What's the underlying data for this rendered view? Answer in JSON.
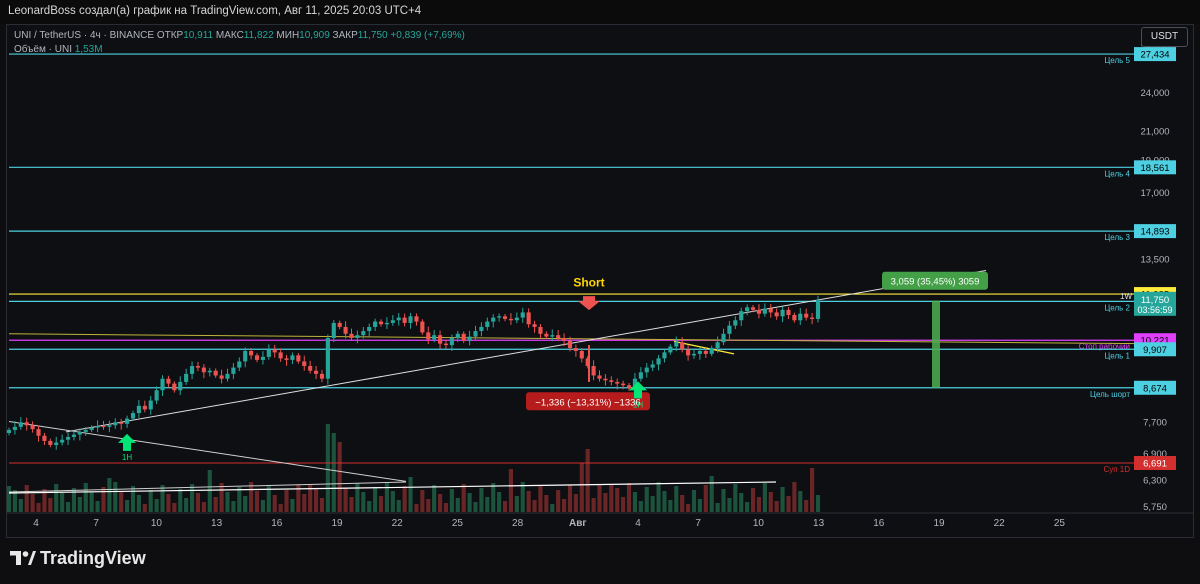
{
  "header": {
    "title": "LeonardBoss создал(а) график на TradingView.com, Авг 11, 2025 20:03 UTC+4"
  },
  "legend": {
    "symbol": "UNI / TetherUS · 4ч · BINANCE",
    "open_label": "ОТКР",
    "open": "10,911",
    "high_label": "МАКС",
    "high": "11,822",
    "low_label": "МИН",
    "low": "10,909",
    "close_label": "ЗАКР",
    "close": "11,750",
    "change": "+0,839 (+7,69%)",
    "volume_label": "Объём · UNI",
    "volume": "1,53M"
  },
  "currency_button": "USDT",
  "footer": {
    "brand": "TradingView"
  },
  "colors": {
    "up": "#26a69a",
    "down": "#ef5350",
    "level": "#4dd0e1",
    "yellow": "#ffeb3b",
    "magenta": "#e040fb",
    "red_level": "#b71c1c",
    "accent_green": "#4caf50"
  },
  "chart_data": {
    "type": "candlestick",
    "timeframe": "4h",
    "y_scale": "log",
    "ylim": [
      5.65,
      29.0
    ],
    "y_ticks": [
      "28,000",
      "24,000",
      "21,000",
      "19,000",
      "17,000",
      "13,500",
      "7,700",
      "6,900",
      "6,300",
      "5,750"
    ],
    "x_ticks": [
      "4",
      "7",
      "10",
      "13",
      "16",
      "19",
      "22",
      "25",
      "28",
      "Авг",
      "4",
      "7",
      "10",
      "13",
      "16",
      "19",
      "22",
      "25"
    ],
    "levels": [
      {
        "price": 27.434,
        "label": "27,434",
        "name": "Цель 5",
        "color": "#4dd0e1"
      },
      {
        "price": 18.561,
        "label": "18,561",
        "name": "Цель 4",
        "color": "#4dd0e1"
      },
      {
        "price": 14.893,
        "label": "14,893",
        "name": "Цель 3",
        "color": "#4dd0e1"
      },
      {
        "price": 11.985,
        "label": "11,985",
        "name": "",
        "color": "#ffeb3b"
      },
      {
        "price": 11.687,
        "label": "11,687",
        "name": "Цель 2",
        "color": "#4dd0e1"
      },
      {
        "price": 10.221,
        "label": "10,221",
        "name": "Стоп рабочий",
        "color": "#e040fb"
      },
      {
        "price": 9.907,
        "label": "9,907",
        "name": "Цель 1",
        "color": "#4dd0e1"
      },
      {
        "price": 8.674,
        "label": "8,674",
        "name": "Цель шорт",
        "color": "#4dd0e1"
      },
      {
        "price": 6.691,
        "label": "6,691",
        "name": "Суп 1D",
        "color": "#d32f2f"
      }
    ],
    "last_price": {
      "price": "11,750",
      "countdown": "03:56:59",
      "tag": "1W"
    },
    "close_series": [
      7.5,
      7.58,
      7.7,
      7.62,
      7.52,
      7.35,
      7.22,
      7.12,
      7.18,
      7.25,
      7.32,
      7.38,
      7.45,
      7.5,
      7.56,
      7.6,
      7.58,
      7.62,
      7.7,
      7.66,
      7.8,
      7.95,
      8.15,
      8.05,
      8.3,
      8.6,
      8.95,
      8.8,
      8.6,
      8.85,
      9.1,
      9.35,
      9.3,
      9.15,
      9.2,
      9.05,
      8.95,
      9.1,
      9.3,
      9.5,
      9.85,
      9.7,
      9.55,
      9.65,
      9.9,
      9.8,
      9.6,
      9.55,
      9.7,
      9.5,
      9.35,
      9.2,
      9.1,
      8.95,
      10.3,
      10.85,
      10.7,
      10.45,
      10.3,
      10.4,
      10.55,
      10.7,
      10.9,
      10.8,
      10.85,
      10.95,
      11.05,
      10.85,
      11.1,
      10.9,
      10.5,
      10.25,
      10.4,
      10.1,
      10.05,
      10.3,
      10.45,
      10.2,
      10.35,
      10.55,
      10.7,
      10.9,
      11.05,
      11.1,
      11.0,
      10.95,
      11.05,
      11.25,
      10.8,
      10.7,
      10.45,
      10.35,
      10.4,
      10.3,
      10.2,
      9.95,
      9.85,
      9.6,
      9.35,
      9.05,
      8.95,
      8.9,
      8.85,
      8.8,
      8.75,
      8.65,
      8.95,
      9.15,
      9.3,
      9.4,
      9.6,
      9.8,
      10.0,
      10.15,
      9.9,
      9.7,
      9.75,
      9.85,
      9.75,
      9.95,
      10.15,
      10.45,
      10.75,
      10.95,
      11.3,
      11.45,
      11.35,
      11.2,
      11.4,
      11.25,
      11.1,
      11.35,
      11.15,
      10.95,
      11.2,
      11.05,
      11.0,
      11.75
    ],
    "annotations": {
      "short_label": "Short",
      "loss_measure": "−1,336 (−13,31%) −1336",
      "gain_measure": "3,059 (35,45%) 3059",
      "marker_1h": "1Н"
    }
  }
}
